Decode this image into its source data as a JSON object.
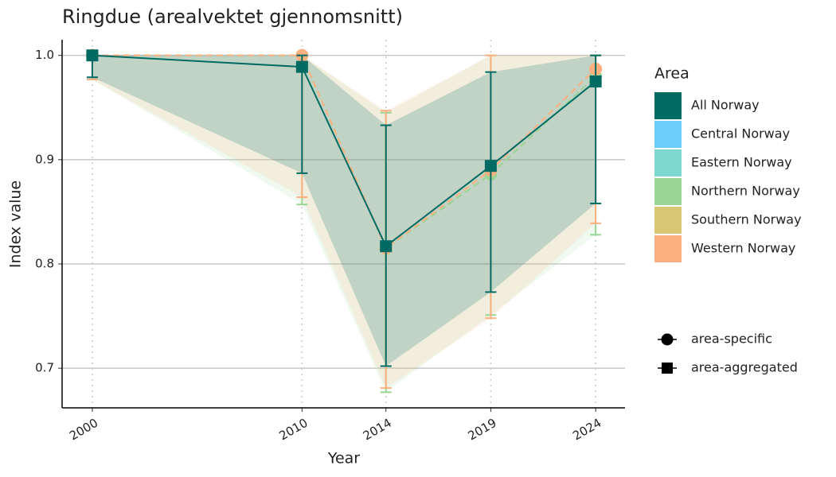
{
  "chart_data": {
    "type": "line",
    "title": "Ringdue (arealvektet gjennomsnitt)",
    "x_label": "Year",
    "y_label": "Index value",
    "x": [
      2000,
      2010,
      2014,
      2019,
      2024
    ],
    "xlim": [
      1998.56,
      2025.4
    ],
    "xticks": [
      2000,
      2010,
      2014,
      2019,
      2024
    ],
    "ylim": [
      0.662,
      1.015
    ],
    "yticks": [
      0.7,
      0.8,
      0.9,
      {
        "value": 1,
        "label": "1.0"
      }
    ],
    "grid": true,
    "legend_title": "Area",
    "legend_position": "right",
    "series": [
      {
        "name": "All Norway",
        "color": "#006b63",
        "marker": "square",
        "line": "solid",
        "values": [
          1,
          0.989,
          0.817,
          0.894,
          0.975
        ],
        "lower": [
          0.979,
          0.887,
          0.702,
          0.773,
          0.858
        ],
        "upper": [
          1,
          1,
          0.933,
          0.984,
          1
        ]
      },
      {
        "name": "Central Norway",
        "color": "#6dcdfa",
        "values": [
          null,
          null,
          null,
          null,
          null
        ]
      },
      {
        "name": "Eastern Norway",
        "color": "#7fd8cf",
        "values": [
          null,
          null,
          null,
          null,
          null
        ]
      },
      {
        "name": "Northern Norway",
        "color": "#99d594",
        "marker": "circle",
        "line": "dashed",
        "values": [
          1,
          1,
          0.815,
          0.886,
          0.98
        ],
        "lower": [
          0.977,
          0.857,
          0.677,
          0.751,
          0.828
        ],
        "upper": [
          1,
          1,
          0.945,
          1,
          1
        ]
      },
      {
        "name": "Southern Norway",
        "color": "#d8c674",
        "values": [
          null,
          null,
          null,
          null,
          null
        ]
      },
      {
        "name": "Western Norway",
        "color": "#fdb07f",
        "marker": "circle",
        "line": "dashed",
        "values": [
          1,
          1,
          0.815,
          0.89,
          0.987
        ],
        "lower": [
          0.977,
          0.864,
          0.681,
          0.748,
          0.839
        ],
        "upper": [
          1,
          1,
          0.947,
          1,
          1
        ]
      }
    ],
    "shape_legend": [
      {
        "label": "area-specific",
        "marker": "circle"
      },
      {
        "label": "area-aggregated",
        "marker": "square"
      }
    ]
  }
}
